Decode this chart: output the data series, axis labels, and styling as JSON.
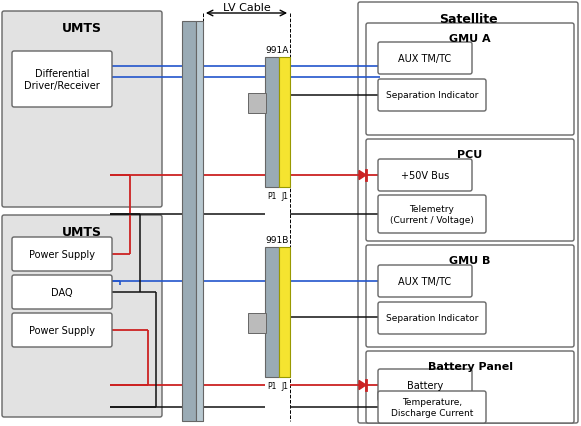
{
  "bg": "#ffffff",
  "lv_cable_label": "LV Cable",
  "connector_991a": "991A",
  "connector_991b": "991B",
  "p1_label": "P1",
  "j1_label": "J1",
  "cable_bar_color": "#9aabb5",
  "cable_bar_color2": "#b8c8d0",
  "yellow_color": "#f5e430",
  "blue_color": "#2255cc",
  "red_color": "#cc2222",
  "black_color": "#111111",
  "gray_color": "#888888",
  "box_edge": "#666666",
  "box_fill_white": "#ffffff",
  "box_fill_gray": "#e2e2e2",
  "umts_top_label": "UMTS",
  "umts_bot_label": "UMTS",
  "satellite_label": "Satellite",
  "diff_driver_label": "Differential\nDriver/Receiver",
  "power_supply1_label": "Power Supply",
  "daq_label": "DAQ",
  "power_supply2_label": "Power Supply",
  "gmu_a_label": "GMU A",
  "aux_tmtc_a_label": "AUX TM/TC",
  "sep_ind_a_label": "Separation Indicator",
  "pcu_label": "PCU",
  "bus50v_label": "+50V Bus",
  "telemetry_label": "Telemetry\n(Current / Voltage)",
  "gmu_b_label": "GMU B",
  "aux_tmtc_b_label": "AUX TM/TC",
  "sep_ind_b_label": "Separation Indicator",
  "battery_panel_label": "Battery Panel",
  "battery_label": "Battery",
  "temp_label": "Temperature,\nDischarge Current"
}
